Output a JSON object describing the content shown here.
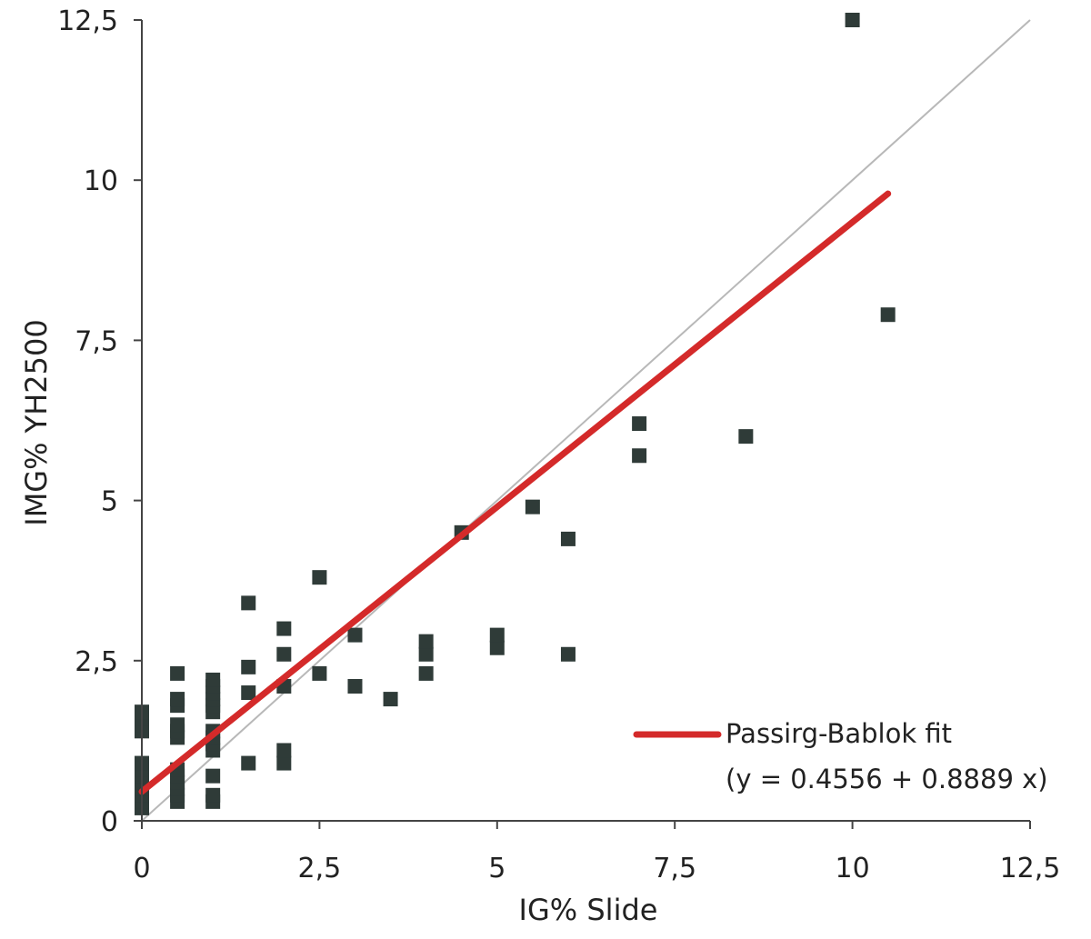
{
  "chart_data": {
    "type": "scatter",
    "title": "",
    "xlabel": "IG% Slide",
    "ylabel": "IMG% YH2500",
    "xlim": [
      0,
      12.5
    ],
    "ylim": [
      0,
      12.5
    ],
    "x_ticks": [
      "0",
      "2,5",
      "5",
      "7,5",
      "10",
      "12,5"
    ],
    "y_ticks": [
      "0",
      "2,5",
      "5",
      "7,5",
      "10",
      "12,5"
    ],
    "x_tick_values": [
      0,
      2.5,
      5,
      7.5,
      10,
      12.5
    ],
    "y_tick_values": [
      0,
      2.5,
      5,
      7.5,
      10,
      12.5
    ],
    "grid": false,
    "legend_position": "bottom-right",
    "colors": {
      "points": "#2f3b38",
      "fit_line": "#d42a2a",
      "identity_line": "#b8b8b8",
      "axis": "#444444"
    },
    "series": [
      {
        "kind": "points",
        "points": [
          [
            0,
            0.2
          ],
          [
            0,
            0.3
          ],
          [
            0,
            0.4
          ],
          [
            0,
            0.5
          ],
          [
            0,
            0.6
          ],
          [
            0,
            0.7
          ],
          [
            0,
            0.8
          ],
          [
            0,
            0.9
          ],
          [
            0,
            1.4
          ],
          [
            0,
            1.5
          ],
          [
            0,
            1.6
          ],
          [
            0,
            1.7
          ],
          [
            0.5,
            0.3
          ],
          [
            0.5,
            0.4
          ],
          [
            0.5,
            0.5
          ],
          [
            0.5,
            0.6
          ],
          [
            0.5,
            0.7
          ],
          [
            0.5,
            0.8
          ],
          [
            0.5,
            1.3
          ],
          [
            0.5,
            1.4
          ],
          [
            0.5,
            1.5
          ],
          [
            0.5,
            1.8
          ],
          [
            0.5,
            1.9
          ],
          [
            0.5,
            2.3
          ],
          [
            1,
            0.3
          ],
          [
            1,
            0.4
          ],
          [
            1,
            0.7
          ],
          [
            1,
            1.1
          ],
          [
            1,
            1.2
          ],
          [
            1,
            1.3
          ],
          [
            1,
            1.4
          ],
          [
            1,
            1.7
          ],
          [
            1,
            1.8
          ],
          [
            1,
            1.9
          ],
          [
            1,
            2.0
          ],
          [
            1,
            2.1
          ],
          [
            1,
            2.2
          ],
          [
            1.5,
            0.9
          ],
          [
            1.5,
            2.0
          ],
          [
            1.5,
            2.4
          ],
          [
            1.5,
            3.4
          ],
          [
            2,
            0.9
          ],
          [
            2,
            1.1
          ],
          [
            2,
            2.1
          ],
          [
            2,
            2.6
          ],
          [
            2,
            3.0
          ],
          [
            2.5,
            2.3
          ],
          [
            2.5,
            3.8
          ],
          [
            3,
            2.1
          ],
          [
            3,
            2.9
          ],
          [
            3.5,
            1.9
          ],
          [
            4,
            2.3
          ],
          [
            4,
            2.6
          ],
          [
            4,
            2.8
          ],
          [
            4.5,
            4.5
          ],
          [
            5,
            2.7
          ],
          [
            5,
            2.9
          ],
          [
            5.5,
            4.9
          ],
          [
            6,
            2.6
          ],
          [
            6,
            4.4
          ],
          [
            7,
            5.7
          ],
          [
            7,
            6.2
          ],
          [
            8.5,
            6.0
          ],
          [
            10,
            12.5
          ],
          [
            10.5,
            7.9
          ]
        ]
      },
      {
        "kind": "line",
        "name": "Passing-Bablok fit",
        "x": [
          0,
          10.5
        ],
        "y": [
          0.4556,
          9.7891
        ]
      },
      {
        "kind": "identity",
        "x": [
          0,
          12.5
        ],
        "y": [
          0,
          12.5
        ]
      }
    ],
    "legend": {
      "label": "Passirg-Bablok fit",
      "equation": "(y = 0.4556 + 0.8889 x)"
    }
  }
}
